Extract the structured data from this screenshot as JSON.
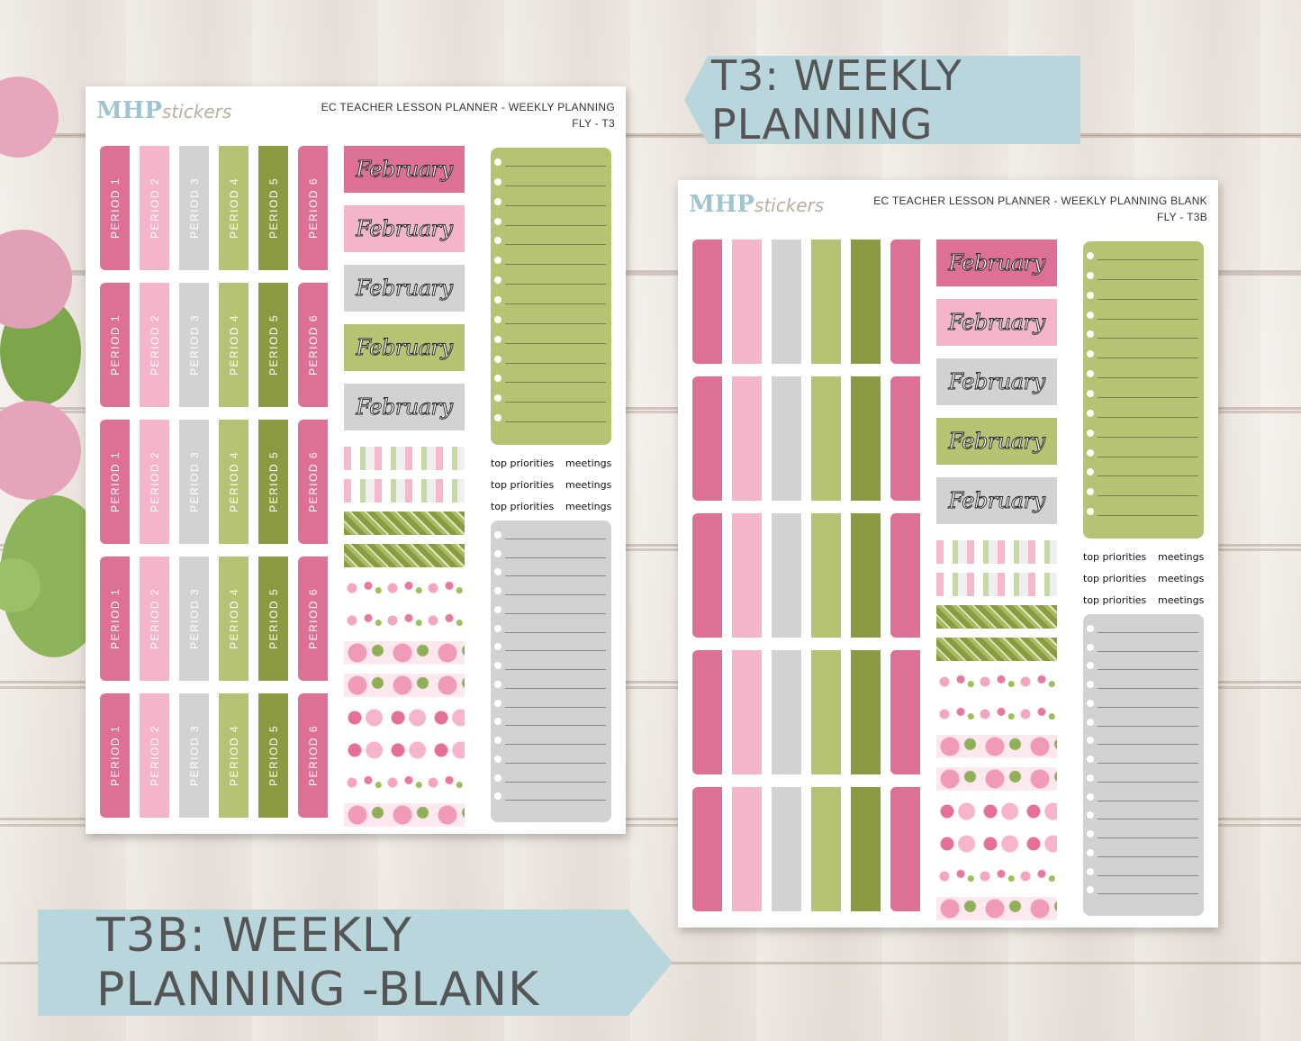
{
  "banners": {
    "t3": "T3: WEEKLY PLANNING",
    "t3b": "T3B: WEEKLY PLANNING -BLANK"
  },
  "logo": {
    "main": "MHP",
    "script": "stickers"
  },
  "sheet_a": {
    "title_line1": "EC TEACHER LESSON PLANNER - WEEKLY PLANNING",
    "title_line2": "FLY - T3",
    "periods": [
      "PERIOD 1",
      "PERIOD 2",
      "PERIOD 3",
      "PERIOD 4",
      "PERIOD 5",
      "PERIOD 6"
    ],
    "month": "February",
    "labels": {
      "top_priorities": "top priorities",
      "meetings": "meetings"
    }
  },
  "sheet_b": {
    "title_line1": "EC TEACHER LESSON PLANNER - WEEKLY PLANNING BLANK",
    "title_line2": "FLY - T3B",
    "month": "February",
    "labels": {
      "top_priorities": "top priorities",
      "meetings": "meetings"
    }
  },
  "colors": {
    "pink_dark": "#de6f96",
    "pink_light": "#f4b5cb",
    "gray": "#d1d2d4",
    "green_light": "#b5c373",
    "green_dark": "#8b9a41",
    "banner": "#b9d6dc"
  }
}
